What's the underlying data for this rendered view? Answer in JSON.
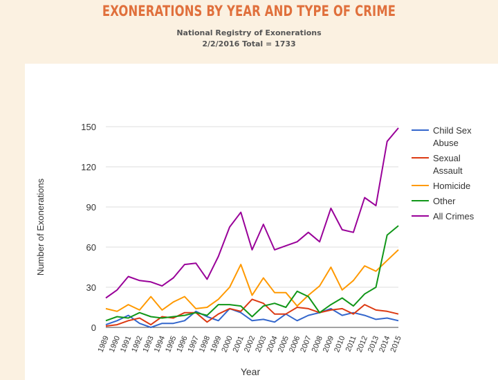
{
  "header": {
    "title": "EXONERATIONS BY YEAR AND TYPE OF CRIME",
    "subtitle_line1": "National Registry of Exonerations",
    "subtitle_line2": "2/2/2016 Total = 1733"
  },
  "colors": {
    "page_background": "#fbf1e1",
    "title": "#e0703c",
    "gridline": "#dddddd"
  },
  "chart_data": {
    "type": "line",
    "xlabel": "Year",
    "ylabel": "Number of Exonerations",
    "ylim": [
      0,
      150
    ],
    "yticks": [
      0,
      30,
      60,
      90,
      120,
      150
    ],
    "grid": true,
    "legend_position": "right",
    "x": [
      "1989",
      "1990",
      "1991",
      "1992",
      "1993",
      "1994",
      "1995",
      "1996",
      "1997",
      "1998",
      "1999",
      "2000",
      "2001",
      "2002",
      "2003",
      "2004",
      "2005",
      "2006",
      "2007",
      "2008",
      "2009",
      "2010",
      "2011",
      "2012",
      "2013",
      "2014",
      "2015"
    ],
    "series": [
      {
        "name": "Child Sex Abuse",
        "color": "#3366cc",
        "values": [
          2,
          5,
          9,
          3,
          0,
          3,
          3,
          5,
          12,
          8,
          5,
          14,
          11,
          5,
          6,
          4,
          10,
          5,
          9,
          11,
          14,
          9,
          11,
          9,
          6,
          7,
          5
        ]
      },
      {
        "name": "Sexual Assault",
        "color": "#dc3912",
        "values": [
          1,
          2,
          5,
          7,
          2,
          8,
          7,
          11,
          11,
          4,
          10,
          14,
          12,
          21,
          18,
          10,
          10,
          15,
          14,
          11,
          13,
          14,
          10,
          17,
          13,
          12,
          10
        ]
      },
      {
        "name": "Homicide",
        "color": "#ff9900",
        "values": [
          14,
          12,
          17,
          13,
          23,
          13,
          19,
          23,
          14,
          15,
          21,
          30,
          47,
          24,
          37,
          26,
          26,
          16,
          24,
          31,
          45,
          28,
          35,
          46,
          42,
          50,
          58
        ]
      },
      {
        "name": "Other",
        "color": "#109618",
        "values": [
          5,
          8,
          7,
          11,
          8,
          7,
          8,
          9,
          11,
          9,
          17,
          17,
          16,
          8,
          16,
          18,
          15,
          27,
          23,
          11,
          17,
          22,
          16,
          25,
          30,
          69,
          76
        ]
      },
      {
        "name": "All Crimes",
        "color": "#990099",
        "values": [
          22,
          28,
          38,
          35,
          34,
          31,
          37,
          47,
          48,
          36,
          53,
          75,
          86,
          58,
          77,
          58,
          61,
          64,
          71,
          64,
          89,
          73,
          71,
          97,
          91,
          139,
          149
        ]
      }
    ]
  }
}
